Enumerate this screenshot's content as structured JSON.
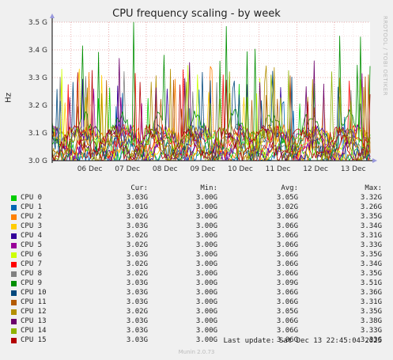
{
  "chart_data": {
    "type": "line",
    "title": "CPU frequency scaling - by week",
    "ylabel": "Hz",
    "ylim": [
      3.0,
      3.5
    ],
    "yticks": [
      "3.0 G",
      "3.1 G",
      "3.2 G",
      "3.3 G",
      "3.4 G",
      "3.5 G"
    ],
    "ytick_values": [
      3.0,
      3.1,
      3.2,
      3.3,
      3.4,
      3.5
    ],
    "xticks": [
      "06 Dec",
      "07 Dec",
      "08 Dec",
      "09 Dec",
      "10 Dec",
      "11 Dec",
      "12 Dec",
      "13 Dec"
    ],
    "xlim": [
      "Dec 05 12:00",
      "Dec 13 22:45"
    ],
    "grid": true,
    "series": [
      {
        "name": "CPU 0",
        "color": "#00cc00",
        "cur": "3.03G",
        "min": "3.00G",
        "avg": "3.05G",
        "max": "3.32G"
      },
      {
        "name": "CPU 1",
        "color": "#0066b3",
        "cur": "3.01G",
        "min": "3.00G",
        "avg": "3.02G",
        "max": "3.26G"
      },
      {
        "name": "CPU 2",
        "color": "#ff8000",
        "cur": "3.02G",
        "min": "3.00G",
        "avg": "3.06G",
        "max": "3.35G"
      },
      {
        "name": "CPU 3",
        "color": "#ffcc00",
        "cur": "3.03G",
        "min": "3.00G",
        "avg": "3.06G",
        "max": "3.34G"
      },
      {
        "name": "CPU 4",
        "color": "#330099",
        "cur": "3.02G",
        "min": "3.00G",
        "avg": "3.06G",
        "max": "3.31G"
      },
      {
        "name": "CPU 5",
        "color": "#990099",
        "cur": "3.02G",
        "min": "3.00G",
        "avg": "3.06G",
        "max": "3.33G"
      },
      {
        "name": "CPU 6",
        "color": "#ccff00",
        "cur": "3.03G",
        "min": "3.00G",
        "avg": "3.06G",
        "max": "3.35G"
      },
      {
        "name": "CPU 7",
        "color": "#ff0000",
        "cur": "3.02G",
        "min": "3.00G",
        "avg": "3.06G",
        "max": "3.34G"
      },
      {
        "name": "CPU 8",
        "color": "#808080",
        "cur": "3.02G",
        "min": "3.00G",
        "avg": "3.06G",
        "max": "3.35G"
      },
      {
        "name": "CPU 9",
        "color": "#008f00",
        "cur": "3.03G",
        "min": "3.00G",
        "avg": "3.09G",
        "max": "3.51G"
      },
      {
        "name": "CPU 10",
        "color": "#00487d",
        "cur": "3.03G",
        "min": "3.00G",
        "avg": "3.06G",
        "max": "3.36G"
      },
      {
        "name": "CPU 11",
        "color": "#b35a00",
        "cur": "3.03G",
        "min": "3.00G",
        "avg": "3.06G",
        "max": "3.31G"
      },
      {
        "name": "CPU 12",
        "color": "#b38f00",
        "cur": "3.02G",
        "min": "3.00G",
        "avg": "3.05G",
        "max": "3.35G"
      },
      {
        "name": "CPU 13",
        "color": "#6b006b",
        "cur": "3.03G",
        "min": "3.00G",
        "avg": "3.06G",
        "max": "3.38G"
      },
      {
        "name": "CPU 14",
        "color": "#8fb300",
        "cur": "3.03G",
        "min": "3.00G",
        "avg": "3.06G",
        "max": "3.33G"
      },
      {
        "name": "CPU 15",
        "color": "#b30000",
        "cur": "3.03G",
        "min": "3.00G",
        "avg": "3.06G",
        "max": "3.33G"
      }
    ]
  },
  "legend_headers": {
    "cur": "Cur:",
    "min": "Min:",
    "avg": "Avg:",
    "max": "Max:"
  },
  "side_text": "RRDTOOL / TOBI OETIKER",
  "last_update": "Last update: Sat Dec 13 22:45:04 2025",
  "footer": "Munin 2.0.73"
}
